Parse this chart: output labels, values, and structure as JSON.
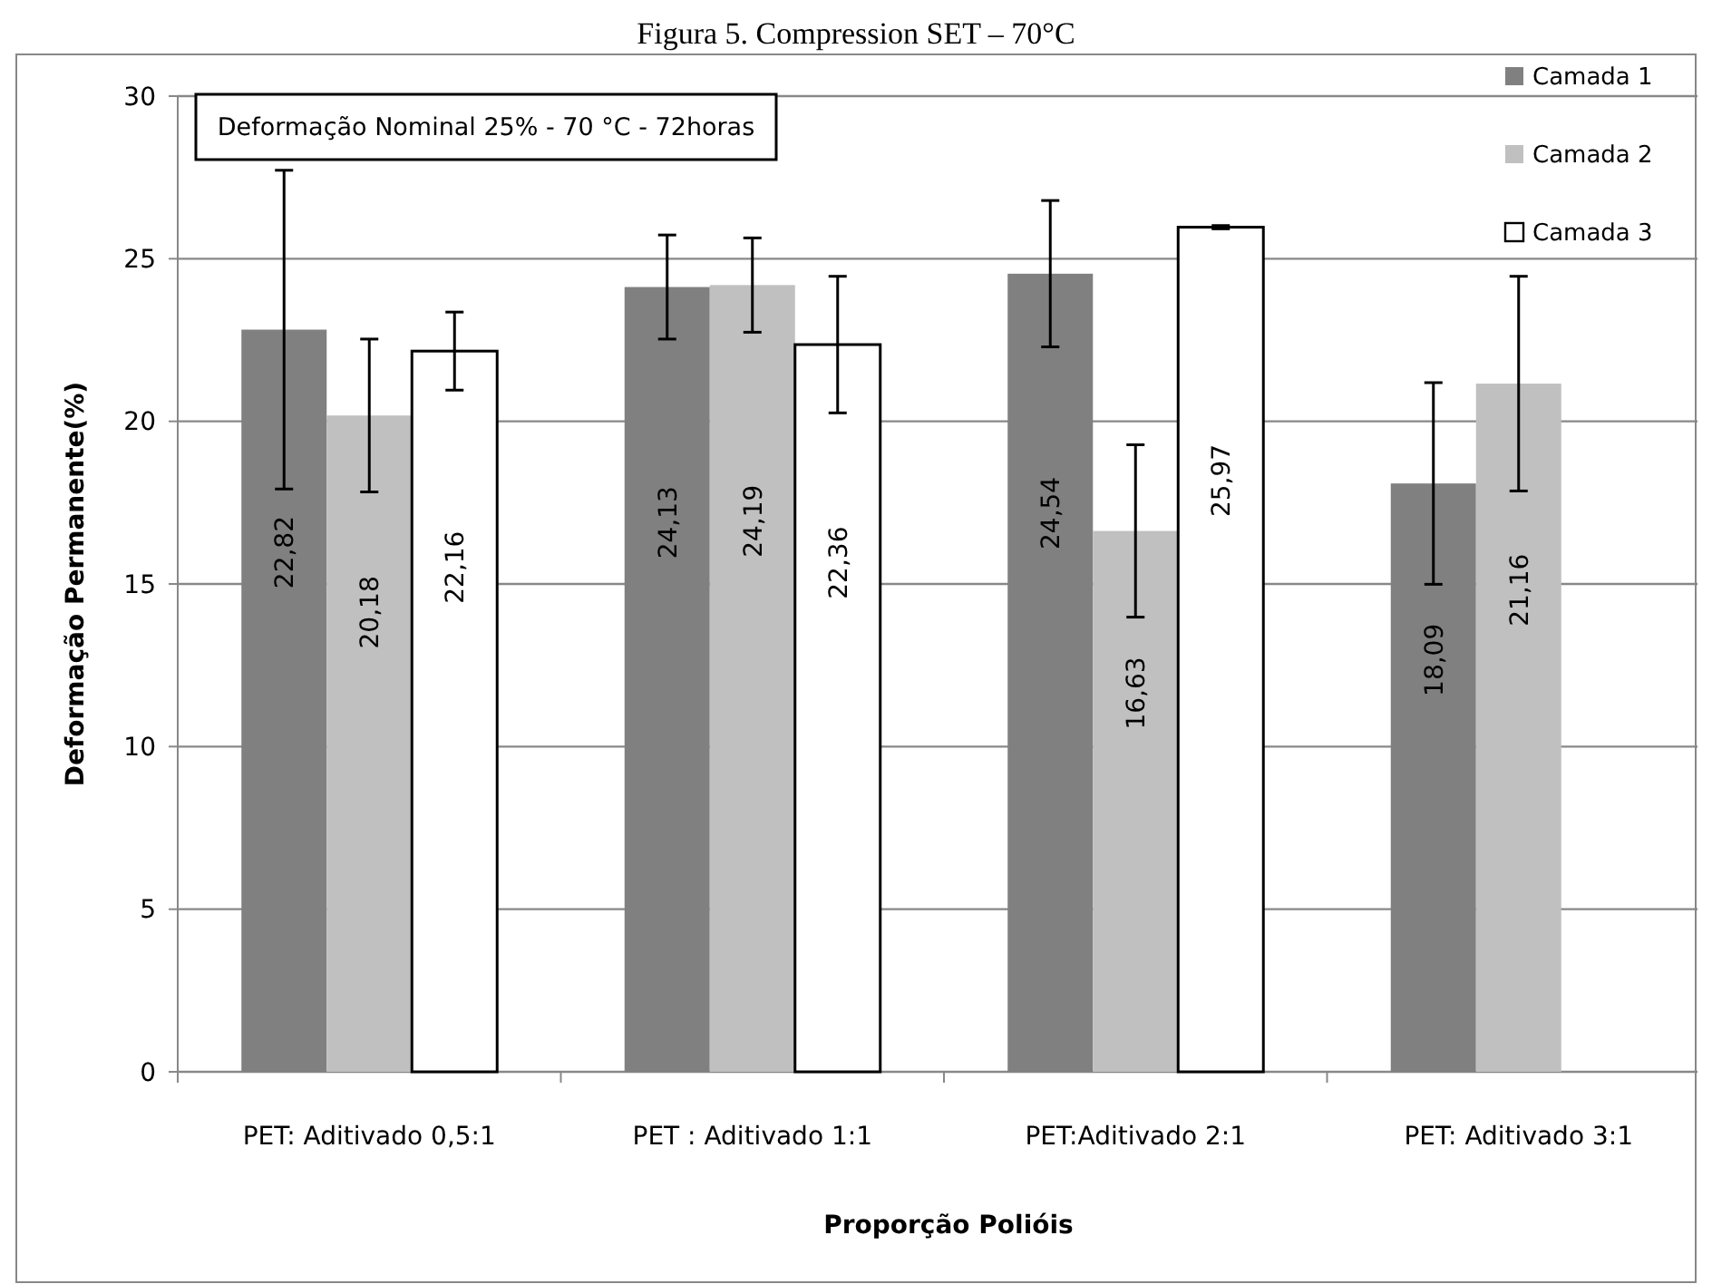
{
  "chart_data": {
    "type": "bar",
    "title": "Figura 5. Compression SET – 70°C",
    "xlabel": "Proporção Polióis",
    "ylabel": "Deformação Permanente(%)",
    "categories": [
      "PET: Aditivado 0,5:1",
      "PET : Aditivado 1:1",
      "PET:Aditivado 2:1",
      "PET: Aditivado 3:1"
    ],
    "series": [
      {
        "name": "Camada 1",
        "color": "#808080",
        "values": [
          22.82,
          24.13,
          24.54,
          18.09
        ],
        "errors": [
          4.9,
          1.6,
          2.25,
          3.1
        ],
        "value_labels": [
          "22,82",
          "24,13",
          "24,54",
          "18,09"
        ]
      },
      {
        "name": "Camada 2",
        "color": "#c0c0c0",
        "values": [
          20.18,
          24.19,
          16.63,
          21.16
        ],
        "errors": [
          2.35,
          1.45,
          2.65,
          3.3
        ],
        "value_labels": [
          "20,18",
          "24,19",
          "16,63",
          "21,16"
        ]
      },
      {
        "name": "Camada 3",
        "color": "#ffffff",
        "values": [
          22.16,
          22.36,
          25.97,
          null
        ],
        "errors": [
          1.2,
          2.1,
          0.05,
          null
        ],
        "value_labels": [
          "22,16",
          "22,36",
          "25,97",
          null
        ]
      }
    ],
    "ylim": [
      0,
      30
    ],
    "yticks": [
      0,
      5,
      10,
      15,
      20,
      25,
      30
    ],
    "grid": "y",
    "legend": "top right",
    "annotations": [
      "Deformação Nominal 25% - 70  °C - 72horas"
    ]
  }
}
